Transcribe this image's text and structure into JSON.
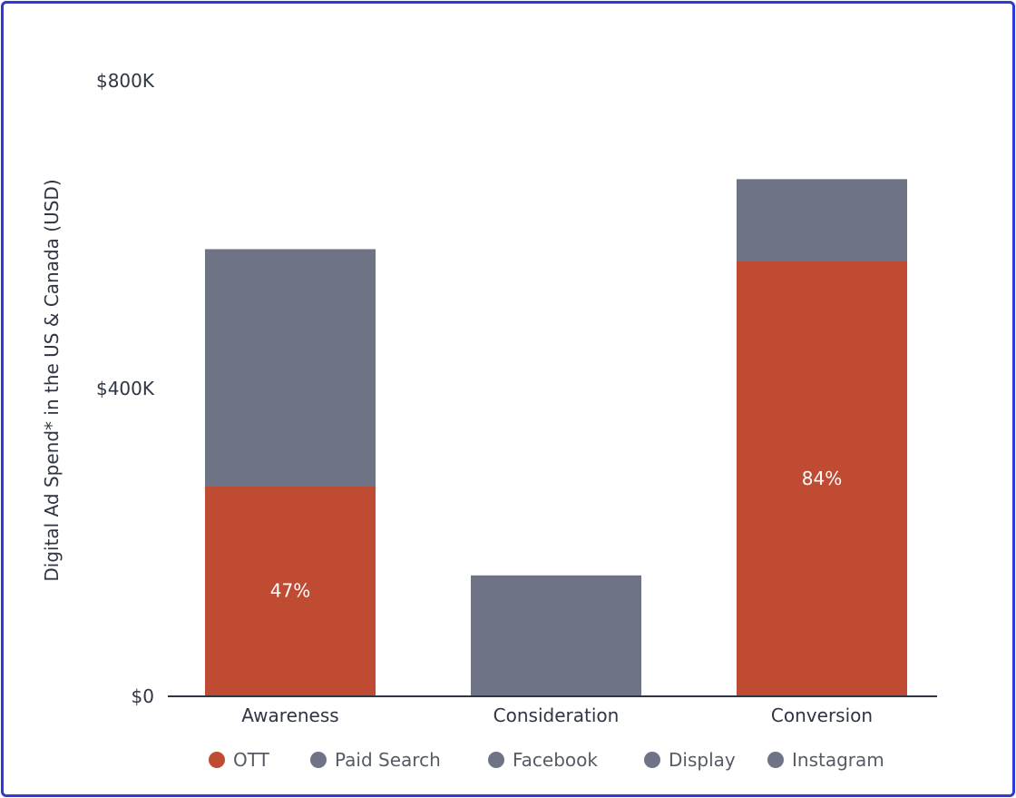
{
  "chart_data": {
    "type": "bar",
    "stacked": true,
    "categories": [
      "Awareness",
      "Consideration",
      "Conversion"
    ],
    "series": [
      {
        "name": "OTT",
        "color": "#c04b33",
        "values": [
          272000,
          0,
          564000
        ]
      },
      {
        "name": "Paid Search",
        "color": "#6e7485",
        "values": [
          0,
          0,
          0
        ]
      },
      {
        "name": "Facebook",
        "color": "#6e7485",
        "values": [
          0,
          0,
          0
        ]
      },
      {
        "name": "Display",
        "color": "#6e7485",
        "values": [
          0,
          0,
          0
        ]
      },
      {
        "name": "Instagram",
        "color": "#6e7485",
        "values": [
          308000,
          156000,
          107000
        ]
      }
    ],
    "data_labels": [
      "47%",
      "",
      "84%"
    ],
    "ylabel": "Digital Ad Spend* in the US & Canada (USD)",
    "xlabel": "",
    "ylim": [
      0,
      800000
    ],
    "yticks": [
      {
        "value": 0,
        "label": "$0"
      },
      {
        "value": 400000,
        "label": "$400K"
      },
      {
        "value": 800000,
        "label": "$800K"
      }
    ],
    "grid": false,
    "legend_position": "bottom"
  }
}
